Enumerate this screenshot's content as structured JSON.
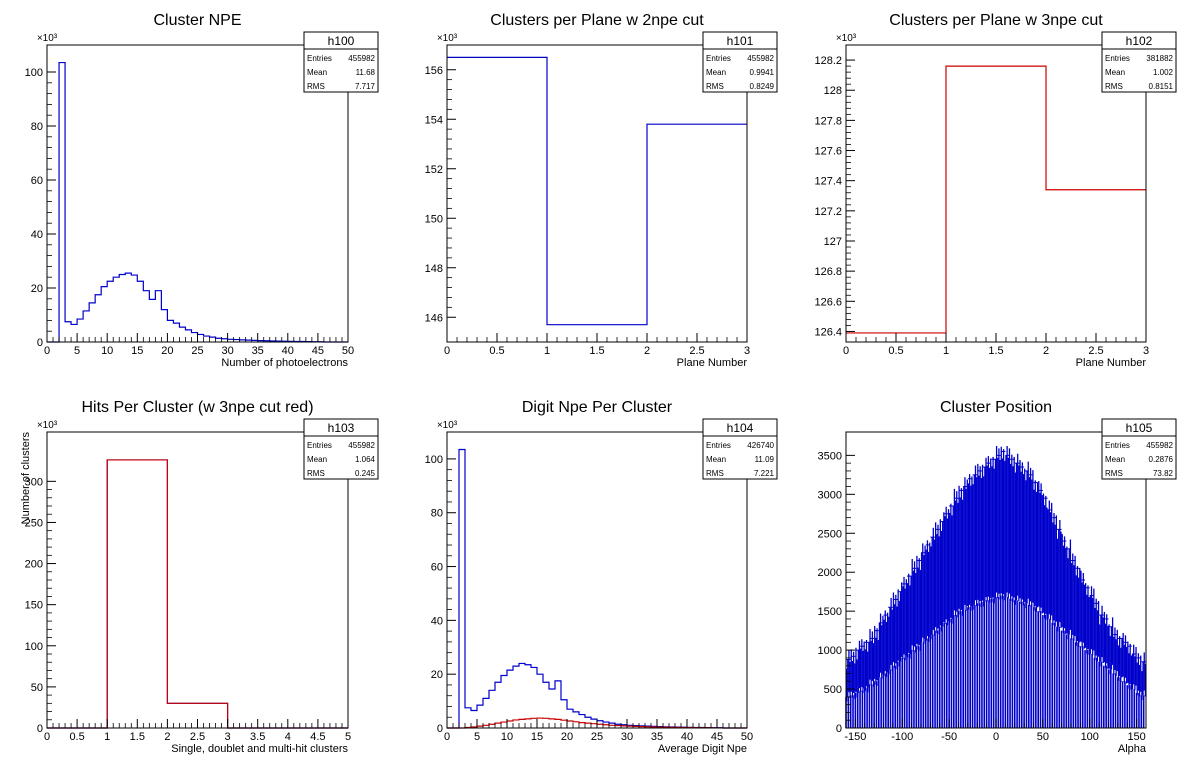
{
  "chart_data": [
    {
      "id": "h100",
      "type": "histogram",
      "title": "Cluster NPE",
      "xlabel": "Number of photoelectrons",
      "ylabel": "",
      "xlim": [
        0,
        50
      ],
      "ylim": [
        0,
        110
      ],
      "y_multiplier": "×10³",
      "xticks": [
        0,
        5,
        10,
        15,
        20,
        25,
        30,
        35,
        40,
        45,
        50
      ],
      "yticks": [
        0,
        20,
        40,
        60,
        80,
        100
      ],
      "stats": [
        {
          "label": "Entries",
          "value": "455982"
        },
        {
          "label": "Mean",
          "value": "11.68"
        },
        {
          "label": "RMS",
          "value": "7.717"
        }
      ],
      "series": [
        {
          "color": "#0000cc",
          "bin_edges": [
            0,
            1,
            2,
            3,
            4,
            5,
            6,
            7,
            8,
            9,
            10,
            11,
            12,
            13,
            14,
            15,
            16,
            17,
            18,
            19,
            20,
            21,
            22,
            23,
            24,
            25,
            26,
            27,
            28,
            29,
            30,
            31,
            32,
            33,
            34,
            35,
            36,
            37,
            38,
            39,
            40,
            41,
            42,
            43,
            44,
            45,
            46,
            47,
            48,
            49,
            50
          ],
          "values": [
            0,
            0,
            103.5,
            7.5,
            6.5,
            8.5,
            11.5,
            14.5,
            17.5,
            20.5,
            22.5,
            24,
            25,
            25.5,
            24.8,
            22.5,
            19,
            15.8,
            19,
            12,
            8,
            7,
            5.5,
            4.5,
            3.5,
            2.8,
            2.2,
            1.8,
            1.4,
            1.2,
            1,
            0.9,
            0.8,
            0.7,
            0.6,
            0.5,
            0.45,
            0.4,
            0.35,
            0.3,
            0.25,
            0.2,
            0.18,
            0.15,
            0.12,
            0.1,
            0,
            0,
            0,
            0
          ]
        }
      ]
    },
    {
      "id": "h101",
      "type": "histogram",
      "title": "Clusters per Plane w 2npe cut",
      "xlabel": "Plane Number",
      "ylabel": "",
      "xlim": [
        0,
        3
      ],
      "ylim": [
        145,
        157
      ],
      "y_multiplier": "×10³",
      "xticks": [
        0,
        0.5,
        1,
        1.5,
        2,
        2.5,
        3
      ],
      "yticks": [
        146,
        148,
        150,
        152,
        154,
        156
      ],
      "stats": [
        {
          "label": "Entries",
          "value": "455982"
        },
        {
          "label": "Mean",
          "value": "0.9941"
        },
        {
          "label": "RMS",
          "value": "0.8249"
        }
      ],
      "series": [
        {
          "color": "#0000cc",
          "bin_edges": [
            0,
            1,
            2,
            3
          ],
          "values": [
            156.5,
            145.7,
            153.8
          ]
        }
      ]
    },
    {
      "id": "h102",
      "type": "histogram",
      "title": "Clusters per Plane w 3npe cut",
      "xlabel": "Plane Number",
      "ylabel": "",
      "xlim": [
        0,
        3
      ],
      "ylim": [
        126.33,
        128.3
      ],
      "y_multiplier": "×10³",
      "xticks": [
        0,
        0.5,
        1,
        1.5,
        2,
        2.5,
        3
      ],
      "yticks": [
        126.4,
        126.6,
        126.8,
        127,
        127.2,
        127.4,
        127.6,
        127.8,
        128,
        128.2
      ],
      "stats": [
        {
          "label": "Entries",
          "value": "381882"
        },
        {
          "label": "Mean",
          "value": "1.002"
        },
        {
          "label": "RMS",
          "value": "0.8151"
        }
      ],
      "series": [
        {
          "color": "#cc0000",
          "bin_edges": [
            0,
            1,
            2,
            3
          ],
          "values": [
            126.39,
            128.16,
            127.34
          ]
        }
      ]
    },
    {
      "id": "h103",
      "type": "histogram",
      "title": "Hits Per Cluster (w 3npe cut red)",
      "xlabel": "Single, doublet and multi-hit clusters",
      "ylabel": "Number of clusters",
      "xlim": [
        0,
        5
      ],
      "ylim": [
        0,
        360
      ],
      "y_multiplier": "×10³",
      "xticks": [
        0,
        0.5,
        1,
        1.5,
        2,
        2.5,
        3,
        3.5,
        4,
        4.5,
        5
      ],
      "yticks": [
        0,
        50,
        100,
        150,
        200,
        250,
        300
      ],
      "stats": [
        {
          "label": "Entries",
          "value": "455982"
        },
        {
          "label": "Mean",
          "value": "1.064"
        },
        {
          "label": "RMS",
          "value": "0.245"
        }
      ],
      "series": [
        {
          "color": "#0000cc",
          "bin_edges": [
            0,
            1,
            2,
            3,
            4,
            5
          ],
          "values": [
            0,
            326,
            30,
            0,
            0
          ]
        },
        {
          "color": "#cc0000",
          "bin_edges": [
            0,
            1,
            2,
            3,
            4,
            5
          ],
          "values": [
            0,
            326,
            30,
            0,
            0
          ]
        }
      ]
    },
    {
      "id": "h104",
      "type": "histogram",
      "title": "Digit Npe Per Cluster",
      "xlabel": "Average Digit Npe",
      "ylabel": "",
      "xlim": [
        0,
        50
      ],
      "ylim": [
        0,
        110
      ],
      "y_multiplier": "×10³",
      "xticks": [
        0,
        5,
        10,
        15,
        20,
        25,
        30,
        35,
        40,
        45,
        50
      ],
      "yticks": [
        0,
        20,
        40,
        60,
        80,
        100
      ],
      "stats": [
        {
          "label": "Entries",
          "value": "426740"
        },
        {
          "label": "Mean",
          "value": "11.09"
        },
        {
          "label": "RMS",
          "value": "7.221"
        }
      ],
      "series": [
        {
          "color": "#0000cc",
          "bin_edges": [
            0,
            1,
            2,
            3,
            4,
            5,
            6,
            7,
            8,
            9,
            10,
            11,
            12,
            13,
            14,
            15,
            16,
            17,
            18,
            19,
            20,
            21,
            22,
            23,
            24,
            25,
            26,
            27,
            28,
            29,
            30,
            31,
            32,
            33,
            34,
            35,
            36,
            37,
            38,
            39,
            40,
            41,
            42,
            43,
            44,
            45,
            46,
            47,
            48,
            49,
            50
          ],
          "values": [
            0,
            0,
            103.5,
            7.5,
            6.5,
            8.5,
            11,
            14,
            17,
            19.5,
            21.5,
            23,
            24,
            23.5,
            22.5,
            20,
            17,
            14.5,
            17.5,
            10.5,
            7,
            6,
            5,
            4,
            3.3,
            2.7,
            2.2,
            1.8,
            1.4,
            1.2,
            1,
            0.9,
            0.8,
            0.7,
            0.6,
            0.5,
            0.45,
            0.4,
            0.35,
            0.3,
            0.25,
            0.2,
            0.18,
            0.15,
            0.12,
            0.1,
            0,
            0,
            0,
            0
          ]
        },
        {
          "color": "#cc0000",
          "bin_edges": [
            0,
            1,
            2,
            3,
            4,
            5,
            6,
            7,
            8,
            9,
            10,
            11,
            12,
            13,
            14,
            15,
            16,
            17,
            18,
            19,
            20,
            21,
            22,
            23,
            24,
            25,
            26,
            27,
            28,
            29,
            30,
            31,
            32,
            33,
            34,
            35,
            36,
            37,
            38,
            39,
            40,
            41,
            42,
            43,
            44,
            45,
            46,
            47,
            48,
            49,
            50
          ],
          "values": [
            0,
            0,
            0,
            0.2,
            0.4,
            0.7,
            1,
            1.4,
            1.8,
            2.2,
            2.6,
            3,
            3.2,
            3.4,
            3.6,
            3.7,
            3.6,
            3.4,
            3.2,
            2.9,
            2.6,
            2.3,
            2,
            1.8,
            1.6,
            1.4,
            1.2,
            1,
            0.9,
            0.8,
            0.7,
            0.6,
            0.5,
            0.45,
            0.4,
            0.35,
            0.3,
            0.25,
            0.2,
            0.18,
            0.15,
            0.12,
            0.1,
            0.08,
            0.05,
            0.02,
            0,
            0,
            0,
            0
          ]
        }
      ]
    },
    {
      "id": "h105",
      "type": "histogram",
      "title": "Cluster Position",
      "xlabel": "Alpha",
      "ylabel": "",
      "xlim": [
        -160,
        160
      ],
      "ylim": [
        0,
        3800
      ],
      "y_multiplier": "",
      "xticks": [
        -150,
        -100,
        -50,
        0,
        50,
        100,
        150
      ],
      "yticks": [
        0,
        500,
        1000,
        1500,
        2000,
        2500,
        3000,
        3500
      ],
      "stats": [
        {
          "label": "Entries",
          "value": "455982"
        },
        {
          "label": "Mean",
          "value": "0.2876"
        },
        {
          "label": "RMS",
          "value": "73.82"
        }
      ],
      "series": [
        {
          "color": "#0000cc",
          "bin_edges": [
            -160,
            -155,
            -150,
            -145,
            -140,
            -135,
            -130,
            -125,
            -120,
            -115,
            -110,
            -105,
            -100,
            -95,
            -90,
            -85,
            -80,
            -75,
            -70,
            -65,
            -60,
            -55,
            -50,
            -45,
            -40,
            -35,
            -30,
            -25,
            -20,
            -15,
            -10,
            -5,
            0,
            5,
            10,
            15,
            20,
            25,
            30,
            35,
            40,
            45,
            50,
            55,
            60,
            65,
            70,
            75,
            80,
            85,
            90,
            95,
            100,
            105,
            110,
            115,
            120,
            125,
            130,
            135,
            140,
            145,
            150,
            155,
            160
          ],
          "values": [
            880,
            920,
            1000,
            1050,
            1100,
            1150,
            1250,
            1350,
            1450,
            1550,
            1650,
            1750,
            1850,
            1950,
            2050,
            2150,
            2250,
            2350,
            2450,
            2550,
            2650,
            2750,
            2850,
            2950,
            3050,
            3100,
            3200,
            3250,
            3300,
            3350,
            3400,
            3450,
            3500,
            3550,
            3500,
            3450,
            3400,
            3350,
            3300,
            3250,
            3150,
            3050,
            2950,
            2800,
            2700,
            2550,
            2400,
            2300,
            2150,
            2050,
            1900,
            1800,
            1700,
            1600,
            1450,
            1400,
            1300,
            1200,
            1150,
            1100,
            1050,
            950,
            900,
            850
          ],
          "lows": [
            400,
            420,
            450,
            480,
            520,
            560,
            600,
            650,
            700,
            750,
            800,
            850,
            900,
            950,
            1000,
            1050,
            1100,
            1150,
            1200,
            1250,
            1300,
            1350,
            1400,
            1450,
            1500,
            1520,
            1550,
            1580,
            1600,
            1620,
            1640,
            1660,
            1680,
            1700,
            1680,
            1660,
            1640,
            1620,
            1600,
            1580,
            1550,
            1500,
            1450,
            1400,
            1350,
            1300,
            1250,
            1200,
            1150,
            1100,
            1050,
            1000,
            950,
            900,
            850,
            800,
            750,
            700,
            650,
            600,
            550,
            500,
            450,
            420
          ]
        }
      ]
    }
  ]
}
